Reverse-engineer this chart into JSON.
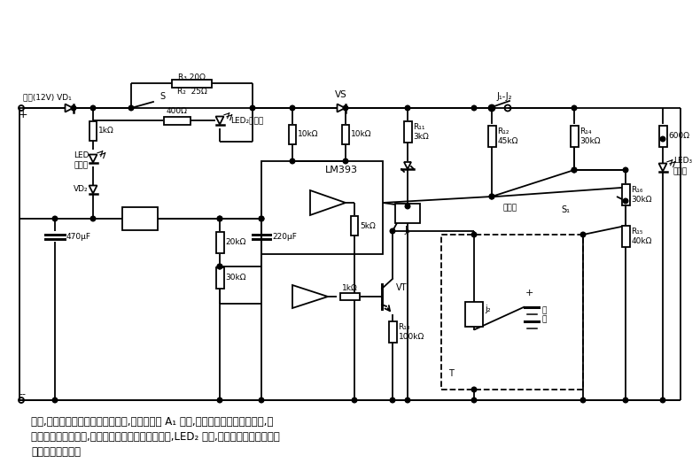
{
  "bg_color": "#ffffff",
  "line_color": "#000000",
  "text_color": "#000000",
  "description_text": [
    "通常,电池充电后电压会跌落。这时,电压比较器 A₁ 翻转,电路又对电池充电。因此,当",
    "电池电压临近充满时,会有停止又再充电的反复过程,LED₂ 闪烁,且闪烁频率随电池电压",
    "的充满越来越高。"
  ]
}
